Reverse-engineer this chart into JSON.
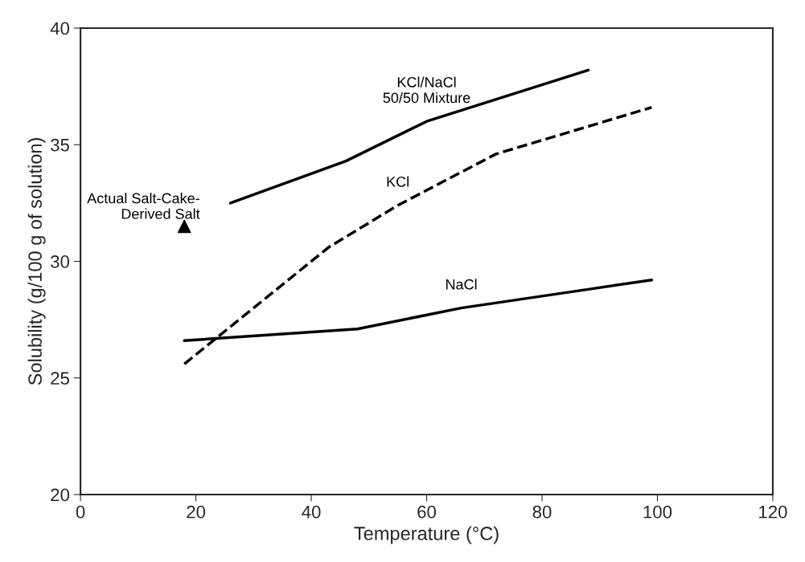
{
  "chart_data": {
    "type": "line",
    "xlabel": "Temperature (°C)",
    "ylabel": "Solubility (g/100 g of solution)",
    "xlim": [
      0,
      120
    ],
    "xticks": [
      0,
      20,
      40,
      60,
      80,
      100,
      120
    ],
    "ylim": [
      20,
      40
    ],
    "yticks": [
      20,
      25,
      30,
      35,
      40
    ],
    "grid": false,
    "marker": "none",
    "series": [
      {
        "name": "KCl/NaCl\n50/50 Mixture",
        "color": "#000000",
        "line_style": "solid",
        "x": [
          26,
          46,
          60,
          88
        ],
        "values": [
          32.5,
          34.3,
          36.0,
          38.2
        ]
      },
      {
        "name": "KCl",
        "color": "#000000",
        "line_style": "dashed",
        "x": [
          18,
          28,
          43,
          55,
          72,
          99
        ],
        "values": [
          25.6,
          27.6,
          30.6,
          32.4,
          34.6,
          36.6
        ]
      },
      {
        "name": "NaCl",
        "color": "#000000",
        "line_style": "solid",
        "x": [
          18,
          48,
          66,
          88,
          99
        ],
        "values": [
          26.6,
          27.1,
          28.0,
          28.8,
          29.2
        ]
      },
      {
        "name": "Actual Salt-Cake-\nDerived Salt",
        "type": "scatter",
        "marker": "triangle",
        "color": "#000000",
        "x": [
          18
        ],
        "values": [
          31.5
        ]
      }
    ]
  }
}
